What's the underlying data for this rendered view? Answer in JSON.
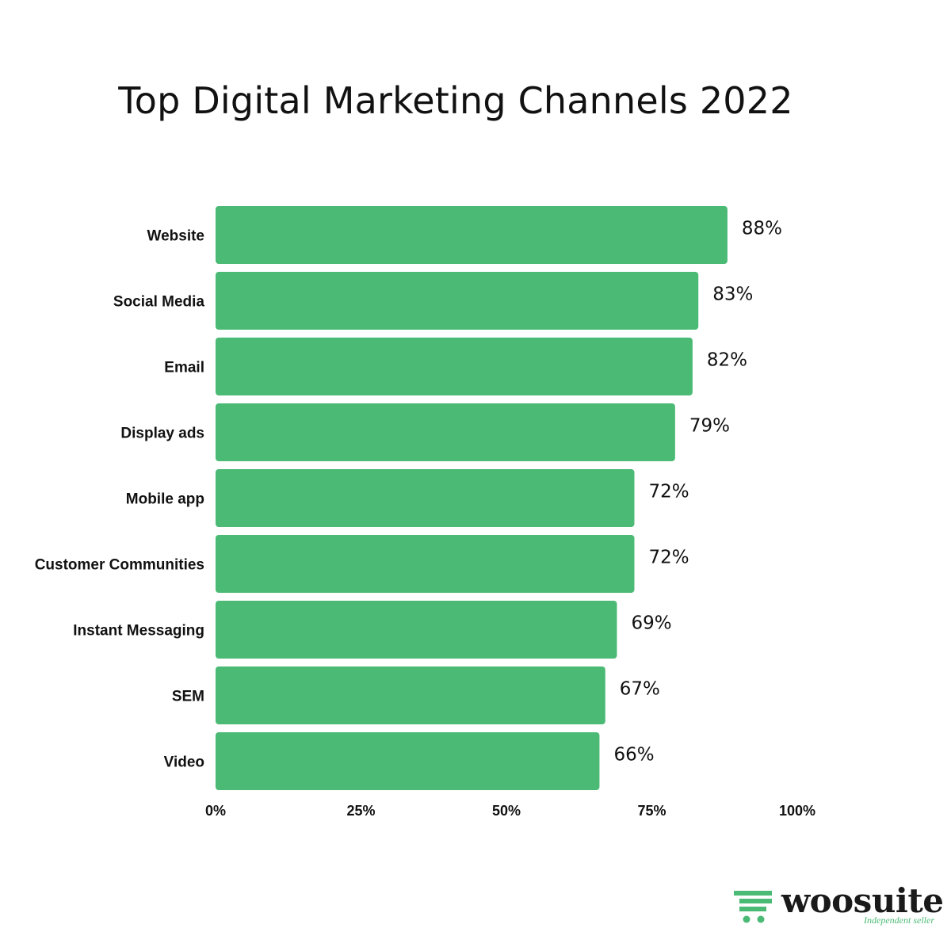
{
  "chart_data": {
    "type": "bar",
    "orientation": "horizontal",
    "title": "Top Digital Marketing Channels 2022",
    "categories": [
      "Website",
      "Social Media",
      "Email",
      "Display ads",
      "Mobile app",
      "Customer Communities",
      "Instant Messaging",
      "SEM",
      "Video"
    ],
    "values": [
      88,
      83,
      82,
      79,
      72,
      72,
      69,
      67,
      66
    ],
    "value_labels": [
      "88%",
      "83%",
      "82%",
      "79%",
      "72%",
      "72%",
      "69%",
      "67%",
      "66%"
    ],
    "xlim": [
      0,
      100
    ],
    "xticks": [
      0,
      25,
      50,
      75,
      100
    ],
    "xtick_labels": [
      "0%",
      "25%",
      "50%",
      "75%",
      "100%"
    ],
    "xlabel": "",
    "ylabel": "",
    "grid": false,
    "bar_color": "#4aba74"
  },
  "brand": {
    "name": "woosuite",
    "tagline": "Independent seller",
    "icon": "cart-icon",
    "accent": "#4aba74"
  }
}
